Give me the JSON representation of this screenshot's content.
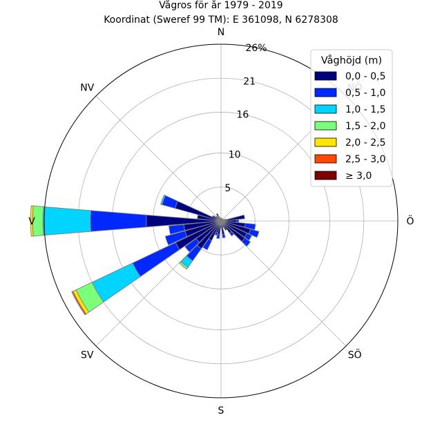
{
  "chart_data": {
    "type": "wind-rose",
    "title": "Vågros för år 1979 - 2019",
    "subtitle": "Koordinat (Sweref 99 TM): E 361098, N 6278308",
    "direction_labels": [
      "N",
      "NV",
      "V",
      "SV",
      "S",
      "SÖ",
      "Ö",
      "NÖ"
    ],
    "radial_ticks": [
      5,
      10,
      16,
      21,
      26
    ],
    "radial_tick_labels": [
      "5",
      "10",
      "16",
      "21",
      "26%"
    ],
    "rmax": 26,
    "legend": {
      "title": "Våghöjd (m)",
      "position": "top-right",
      "bins": [
        "0,0 - 0,5",
        "0,5 - 1,0",
        "1,0 - 1,5",
        "1,5 - 2,0",
        "2,0 - 2,5",
        "2,5 - 3,0",
        "≥ 3,0"
      ],
      "colors": [
        "#00007f",
        "#0028ff",
        "#00d4ff",
        "#7cff79",
        "#ffe500",
        "#ff4800",
        "#7f0000"
      ]
    },
    "sector_width_deg": 10,
    "series": [
      {
        "direction_deg": 0,
        "values": [
          0.3
        ]
      },
      {
        "direction_deg": 10,
        "values": [
          0.4
        ]
      },
      {
        "direction_deg": 20,
        "values": [
          0.4
        ]
      },
      {
        "direction_deg": 30,
        "values": [
          0.4
        ]
      },
      {
        "direction_deg": 40,
        "values": [
          0.3
        ]
      },
      {
        "direction_deg": 50,
        "values": [
          0.3
        ]
      },
      {
        "direction_deg": 60,
        "values": [
          0.4
        ]
      },
      {
        "direction_deg": 70,
        "values": [
          0.7
        ]
      },
      {
        "direction_deg": 80,
        "values": [
          3.5
        ]
      },
      {
        "direction_deg": 90,
        "values": [
          2.3,
          0.3
        ]
      },
      {
        "direction_deg": 100,
        "values": [
          3.6,
          1.5
        ]
      },
      {
        "direction_deg": 110,
        "values": [
          4.5,
          1.3
        ]
      },
      {
        "direction_deg": 120,
        "values": [
          4.2,
          0.8
        ]
      },
      {
        "direction_deg": 130,
        "values": [
          4.3,
          1.0
        ]
      },
      {
        "direction_deg": 140,
        "values": [
          2.2,
          0.5
        ]
      },
      {
        "direction_deg": 150,
        "values": [
          1.5
        ]
      },
      {
        "direction_deg": 160,
        "values": [
          1.0
        ]
      },
      {
        "direction_deg": 170,
        "values": [
          2.0,
          0.5
        ]
      },
      {
        "direction_deg": 180,
        "values": [
          1.0
        ]
      },
      {
        "direction_deg": 190,
        "values": [
          2.0,
          0.6
        ]
      },
      {
        "direction_deg": 200,
        "values": [
          1.8,
          0.4
        ]
      },
      {
        "direction_deg": 210,
        "values": [
          3.2,
          1.5
        ]
      },
      {
        "direction_deg": 220,
        "values": [
          5.0,
          2.2,
          1.2,
          0.3
        ]
      },
      {
        "direction_deg": 230,
        "values": [
          4.5,
          2.0
        ]
      },
      {
        "direction_deg": 240,
        "values": [
          7.4,
          7.0,
          6.6,
          2.6,
          0.5,
          0.2
        ]
      },
      {
        "direction_deg": 250,
        "values": [
          5.5,
          3.0
        ]
      },
      {
        "direction_deg": 260,
        "values": [
          5.5,
          2.2
        ]
      },
      {
        "direction_deg": 270,
        "values": [
          11.0,
          8.2,
          7.0,
          1.5,
          0.3
        ]
      },
      {
        "direction_deg": 280,
        "values": [
          3.5
        ]
      },
      {
        "direction_deg": 290,
        "values": [
          7.0,
          2.0,
          0.2
        ]
      },
      {
        "direction_deg": 300,
        "values": [
          1.4
        ]
      },
      {
        "direction_deg": 310,
        "values": [
          1.0
        ]
      },
      {
        "direction_deg": 320,
        "values": [
          0.8
        ]
      },
      {
        "direction_deg": 330,
        "values": [
          1.2
        ]
      },
      {
        "direction_deg": 340,
        "values": [
          0.6
        ]
      },
      {
        "direction_deg": 350,
        "values": [
          0.4
        ]
      }
    ]
  }
}
